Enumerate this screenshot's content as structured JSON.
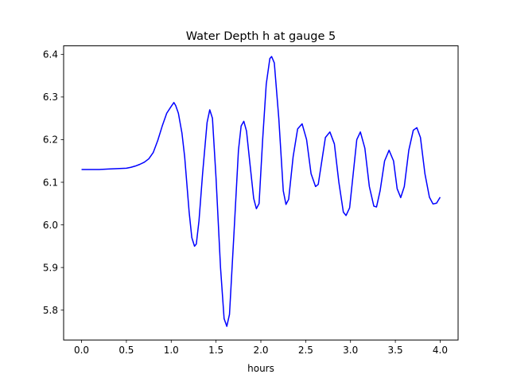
{
  "chart_data": {
    "type": "line",
    "title": "Water Depth h at gauge 5",
    "xlabel": "hours",
    "ylabel": "",
    "xlim": [
      -0.2,
      4.2
    ],
    "ylim": [
      5.73,
      6.42
    ],
    "xticks": [
      0.0,
      0.5,
      1.0,
      1.5,
      2.0,
      2.5,
      3.0,
      3.5,
      4.0
    ],
    "xtick_labels": [
      "0.0",
      "0.5",
      "1.0",
      "1.5",
      "2.0",
      "2.5",
      "3.0",
      "3.5",
      "4.0"
    ],
    "yticks": [
      5.8,
      5.9,
      6.0,
      6.1,
      6.2,
      6.3,
      6.4
    ],
    "ytick_labels": [
      "5.8",
      "5.9",
      "6.0",
      "6.1",
      "6.2",
      "6.3",
      "6.4"
    ],
    "grid": false,
    "line_color": "#0000ff",
    "series": [
      {
        "x": [
          0.0,
          0.1,
          0.2,
          0.3,
          0.4,
          0.5,
          0.55,
          0.6,
          0.65,
          0.7,
          0.75,
          0.8,
          0.85,
          0.9,
          0.95,
          1.0,
          1.03,
          1.05,
          1.08,
          1.12,
          1.15,
          1.2,
          1.23,
          1.26,
          1.28,
          1.31,
          1.35,
          1.4,
          1.43,
          1.46,
          1.5,
          1.55,
          1.59,
          1.62,
          1.65,
          1.7,
          1.75,
          1.78,
          1.81,
          1.84,
          1.88,
          1.92,
          1.95,
          1.98,
          2.02,
          2.06,
          2.1,
          2.12,
          2.15,
          2.2,
          2.25,
          2.28,
          2.31,
          2.36,
          2.41,
          2.46,
          2.51,
          2.56,
          2.61,
          2.64,
          2.68,
          2.72,
          2.77,
          2.82,
          2.87,
          2.92,
          2.95,
          2.99,
          3.03,
          3.07,
          3.11,
          3.16,
          3.21,
          3.26,
          3.29,
          3.33,
          3.38,
          3.43,
          3.48,
          3.52,
          3.56,
          3.6,
          3.65,
          3.7,
          3.74,
          3.78,
          3.83,
          3.88,
          3.92,
          3.96,
          4.0
        ],
        "y": [
          6.13,
          6.13,
          6.13,
          6.131,
          6.132,
          6.133,
          6.135,
          6.138,
          6.142,
          6.147,
          6.155,
          6.17,
          6.198,
          6.232,
          6.262,
          6.278,
          6.287,
          6.28,
          6.262,
          6.215,
          6.16,
          6.03,
          5.97,
          5.95,
          5.955,
          6.01,
          6.12,
          6.24,
          6.27,
          6.25,
          6.11,
          5.9,
          5.78,
          5.762,
          5.79,
          5.98,
          6.175,
          6.232,
          6.243,
          6.22,
          6.14,
          6.062,
          6.038,
          6.05,
          6.2,
          6.33,
          6.39,
          6.395,
          6.38,
          6.25,
          6.08,
          6.048,
          6.06,
          6.16,
          6.225,
          6.237,
          6.2,
          6.12,
          6.09,
          6.095,
          6.15,
          6.205,
          6.218,
          6.19,
          6.1,
          6.03,
          6.022,
          6.04,
          6.12,
          6.2,
          6.218,
          6.18,
          6.09,
          6.044,
          6.042,
          6.08,
          6.15,
          6.175,
          6.15,
          6.085,
          6.064,
          6.09,
          6.175,
          6.222,
          6.228,
          6.205,
          6.12,
          6.065,
          6.049,
          6.051,
          6.065
        ]
      }
    ]
  }
}
